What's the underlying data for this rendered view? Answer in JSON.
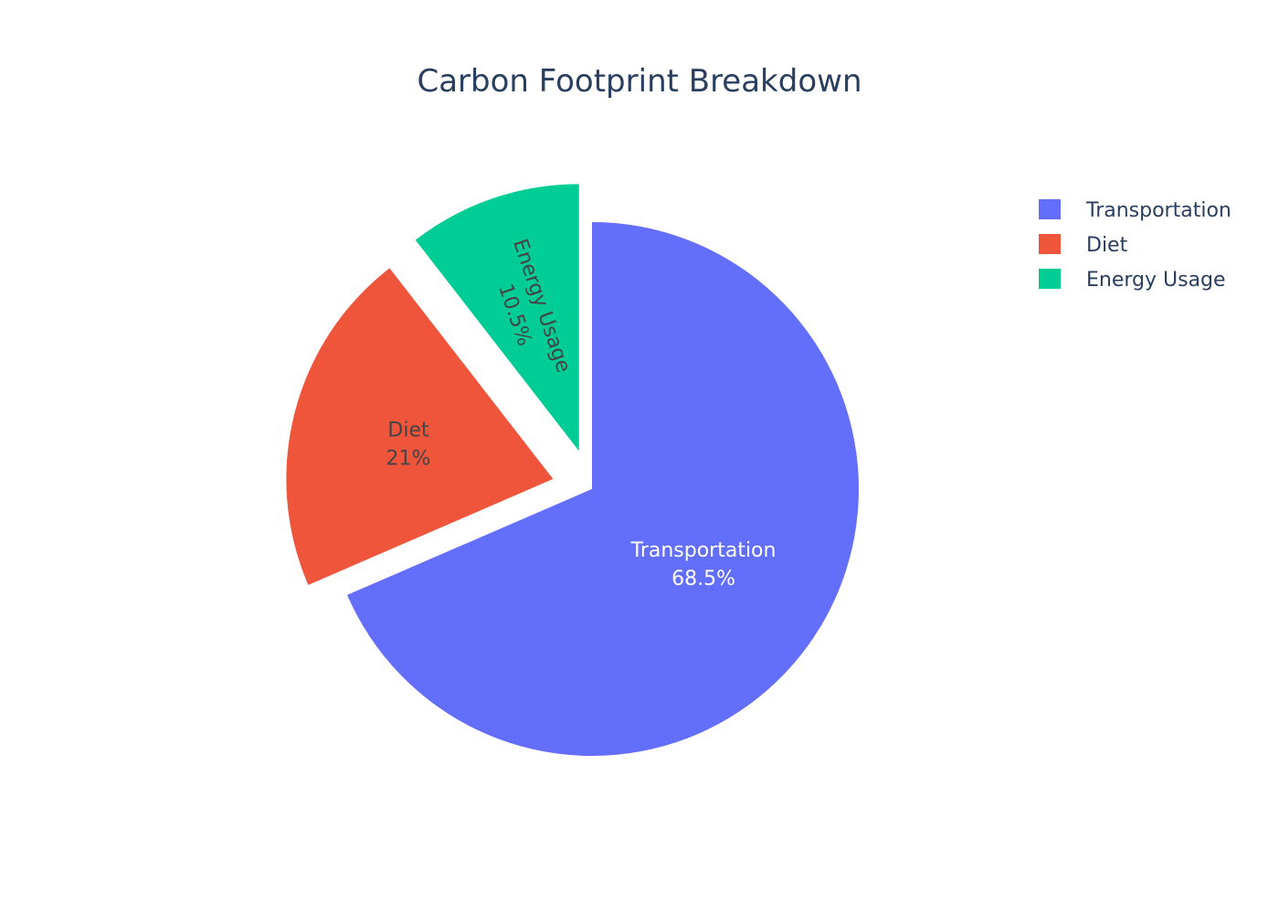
{
  "chart_data": {
    "type": "pie",
    "title": "Carbon Footprint Breakdown",
    "slices": [
      {
        "label": "Transportation",
        "value": 68.5,
        "percent_label": "68.5%",
        "color": "#636efa",
        "text_color": "#ffffff",
        "pulled": false
      },
      {
        "label": "Diet",
        "value": 21,
        "percent_label": "21%",
        "color": "#ef553b",
        "text_color": "#444444",
        "pulled": true
      },
      {
        "label": "Energy Usage",
        "value": 10.5,
        "percent_label": "10.5%",
        "color": "#00cc96",
        "text_color": "#444444",
        "pulled": true
      }
    ],
    "legend": {
      "placement": "top-right",
      "entries": [
        "Transportation",
        "Diet",
        "Energy Usage"
      ]
    },
    "direction": "clockwise",
    "start": "top"
  }
}
